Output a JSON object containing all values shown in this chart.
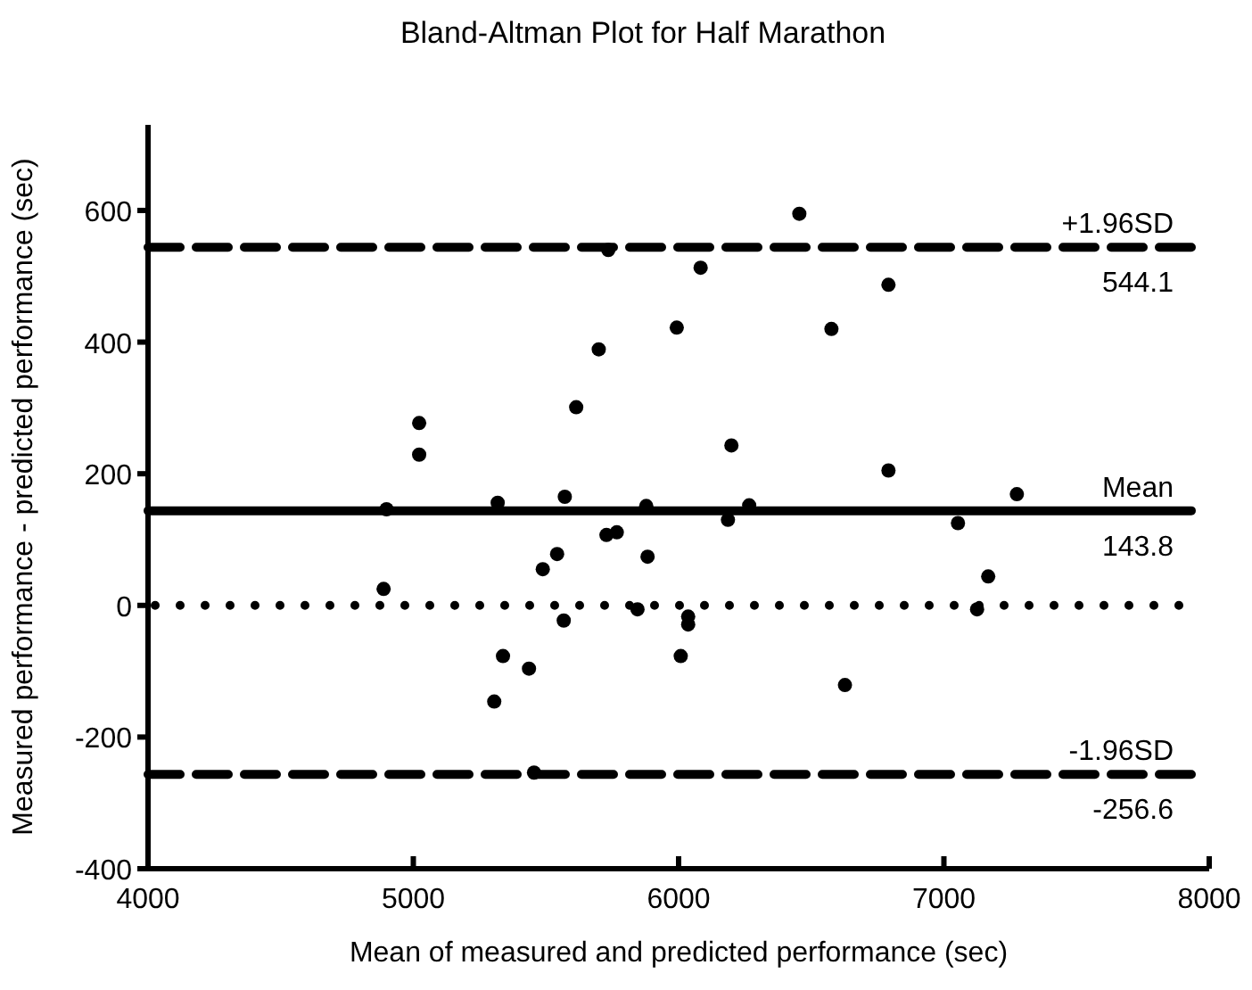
{
  "chart_data": {
    "type": "scatter",
    "title": "Bland-Altman Plot for Half Marathon",
    "xlabel": "Mean of measured and predicted performance (sec)",
    "ylabel": "Measured performance - predicted performance (sec)",
    "x": [
      6455,
      6791,
      6576,
      6199,
      6791,
      7275,
      6266,
      6186,
      7053,
      7167,
      5735,
      6083,
      5993,
      5699,
      5614,
      5022,
      5022,
      4899,
      5318,
      5571,
      5878,
      5728,
      5767,
      5542,
      5883,
      5488,
      4888,
      5567,
      5845,
      6036,
      6036,
      5338,
      5436,
      6008,
      5305,
      5455,
      7125,
      6627
    ],
    "values": [
      595,
      487,
      420,
      243,
      205,
      169,
      152,
      130,
      125,
      44,
      540,
      513,
      422,
      389,
      301,
      277,
      229,
      146,
      156,
      165,
      151,
      107,
      111,
      78,
      74,
      55,
      25,
      -23,
      -6,
      -17,
      -29,
      -77,
      -96,
      -77,
      -146,
      -254,
      -6,
      -121
    ],
    "color": "#000000",
    "marker": "circle",
    "grid": false,
    "annotations": [
      {
        "text": "544.1",
        "y": 544.1
      },
      {
        "text": "143.8",
        "y": 143.8
      },
      {
        "text": "-256.6",
        "y": -256.6
      }
    ],
    "xlim": [
      4000,
      8000
    ],
    "xticks": [
      4000,
      5000,
      6000,
      7000,
      8000
    ],
    "ylim": [
      -400,
      730
    ],
    "yticks": [
      -400,
      -200,
      0,
      200,
      400,
      600
    ],
    "ref_lines": [
      {
        "axis": "y",
        "value": 544.1,
        "label": "+1.96SD",
        "line_style": "dashed",
        "color": "#000000"
      },
      {
        "axis": "y",
        "value": 143.8,
        "label": "Mean",
        "line_style": "solid",
        "color": "#000000"
      },
      {
        "axis": "y",
        "value": 0,
        "label": null,
        "line_style": "dotted",
        "color": "#000000"
      },
      {
        "axis": "y",
        "value": -256.6,
        "label": "-1.96SD",
        "line_style": "dashed",
        "color": "#000000"
      }
    ]
  }
}
